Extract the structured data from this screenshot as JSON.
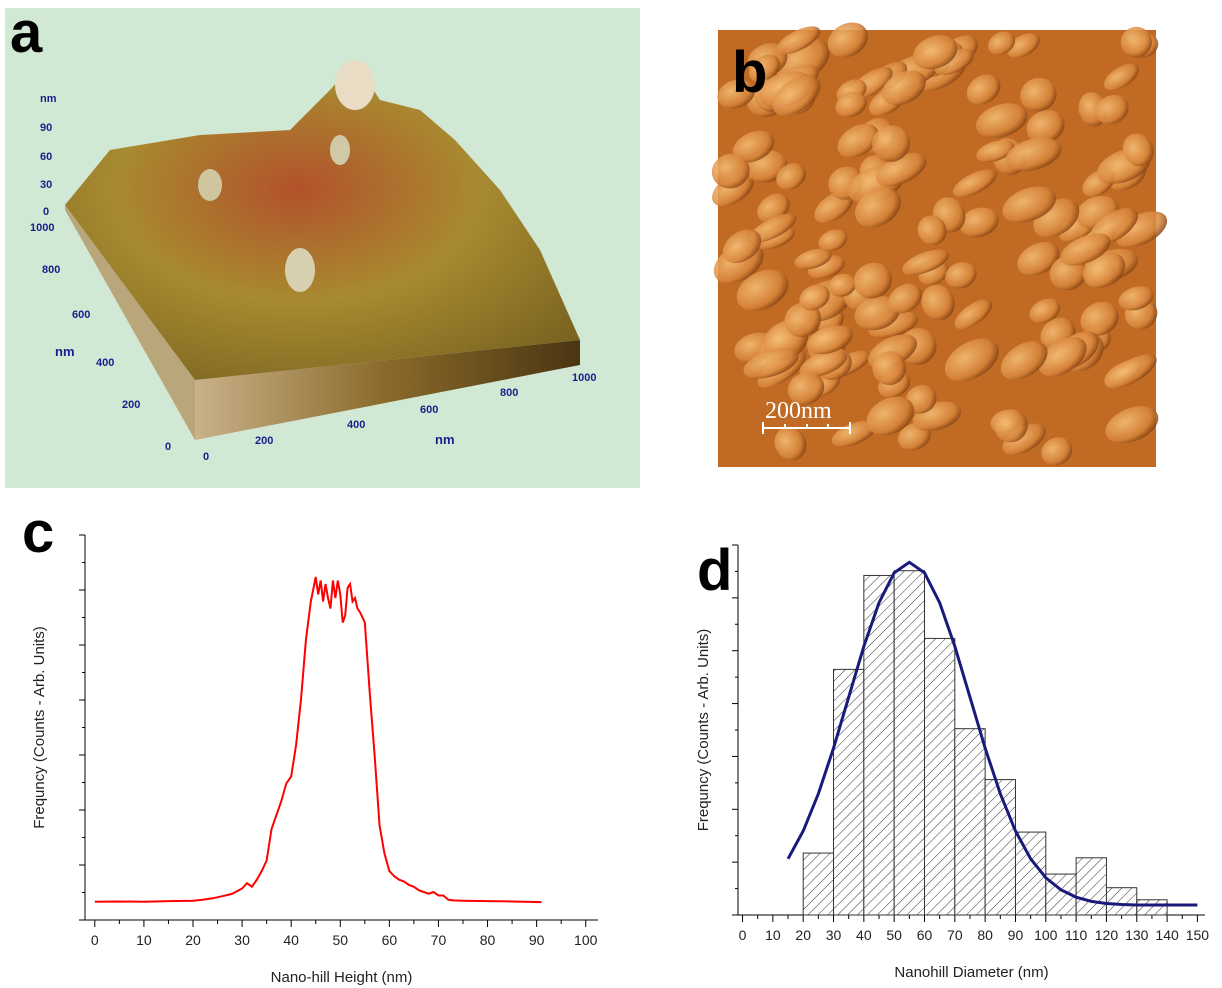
{
  "panels": {
    "a": {
      "label": "a",
      "z_axis": {
        "unit": "nm",
        "ticks": [
          90,
          60,
          30,
          0
        ]
      },
      "y_axis": {
        "unit": "nm",
        "ticks": [
          1000,
          800,
          600,
          400,
          200,
          0
        ]
      },
      "x_axis": {
        "unit": "nm",
        "ticks": [
          0,
          200,
          400,
          600,
          800,
          1000
        ]
      }
    },
    "b": {
      "label": "b",
      "scale_bar": "200nm"
    }
  },
  "chart_data": [
    {
      "type": "line",
      "label": "c",
      "x_label": "Nano-hill Height (nm)",
      "y_label": "Frequncy (Counts - Arb. Units)",
      "x": [
        0,
        5,
        10,
        15,
        20,
        22,
        24,
        26,
        28,
        30,
        31,
        32,
        33,
        34,
        35,
        36,
        37,
        38,
        39,
        40,
        41,
        42,
        43,
        44,
        45,
        45.5,
        46,
        46.5,
        47,
        47.5,
        48,
        48.5,
        49,
        49.5,
        50,
        50.5,
        51,
        51.5,
        52,
        52.5,
        53,
        53.5,
        54,
        55,
        56,
        57,
        58,
        59,
        60,
        61,
        62,
        63,
        64,
        65,
        66,
        67,
        68,
        69,
        70,
        71,
        72,
        73,
        75,
        80,
        85,
        91
      ],
      "series": [
        {
          "color": "#ff0000",
          "values": [
            0.002,
            0.003,
            0.002,
            0.004,
            0.005,
            0.008,
            0.012,
            0.018,
            0.025,
            0.04,
            0.055,
            0.045,
            0.065,
            0.09,
            0.12,
            0.21,
            0.25,
            0.29,
            0.34,
            0.36,
            0.45,
            0.58,
            0.75,
            0.86,
            0.93,
            0.88,
            0.92,
            0.86,
            0.91,
            0.87,
            0.84,
            0.92,
            0.87,
            0.92,
            0.88,
            0.8,
            0.82,
            0.9,
            0.91,
            0.86,
            0.87,
            0.84,
            0.83,
            0.8,
            0.6,
            0.42,
            0.22,
            0.14,
            0.09,
            0.075,
            0.065,
            0.06,
            0.05,
            0.045,
            0.035,
            0.03,
            0.025,
            0.03,
            0.02,
            0.02,
            0.008,
            0.006,
            0.005,
            0.004,
            0.003,
            0.001
          ]
        }
      ],
      "xlim": [
        -2,
        102.5
      ],
      "ylim": [
        -0.05,
        1.05
      ],
      "xticks": [
        0,
        10,
        20,
        30,
        40,
        50,
        60,
        70,
        80,
        90,
        100
      ]
    },
    {
      "type": "histogram",
      "label": "d",
      "x_label": "Nanohill Diameter (nm)",
      "y_label": "Frequncy (Counts - Arb. Units)",
      "bins": [
        20,
        30,
        40,
        50,
        60,
        70,
        80,
        90,
        100,
        110,
        120,
        130,
        140
      ],
      "values": [
        1.18,
        4.68,
        6.47,
        6.56,
        5.27,
        3.55,
        2.58,
        1.58,
        0.78,
        1.09,
        0.52,
        0.29
      ],
      "color": "#333333",
      "fit": {
        "color": "#1a1a7a",
        "x": [
          15,
          20,
          25,
          30,
          35,
          40,
          45,
          50,
          55,
          60,
          65,
          70,
          75,
          80,
          85,
          90,
          95,
          100,
          105,
          110,
          115,
          120,
          125,
          130,
          135,
          140,
          145,
          150
        ],
        "values": [
          1.07,
          1.6,
          2.31,
          3.18,
          4.15,
          5.12,
          5.95,
          6.52,
          6.72,
          6.52,
          5.95,
          5.12,
          4.15,
          3.18,
          2.31,
          1.6,
          1.07,
          0.71,
          0.48,
          0.34,
          0.26,
          0.22,
          0.2,
          0.19,
          0.19,
          0.19,
          0.19,
          0.19
        ]
      },
      "xlim": [
        -1.5,
        152.5
      ],
      "ylim": [
        0,
        7.05
      ],
      "xticks": [
        0,
        10,
        20,
        30,
        40,
        50,
        60,
        70,
        80,
        90,
        100,
        110,
        120,
        130,
        140,
        150
      ]
    }
  ]
}
